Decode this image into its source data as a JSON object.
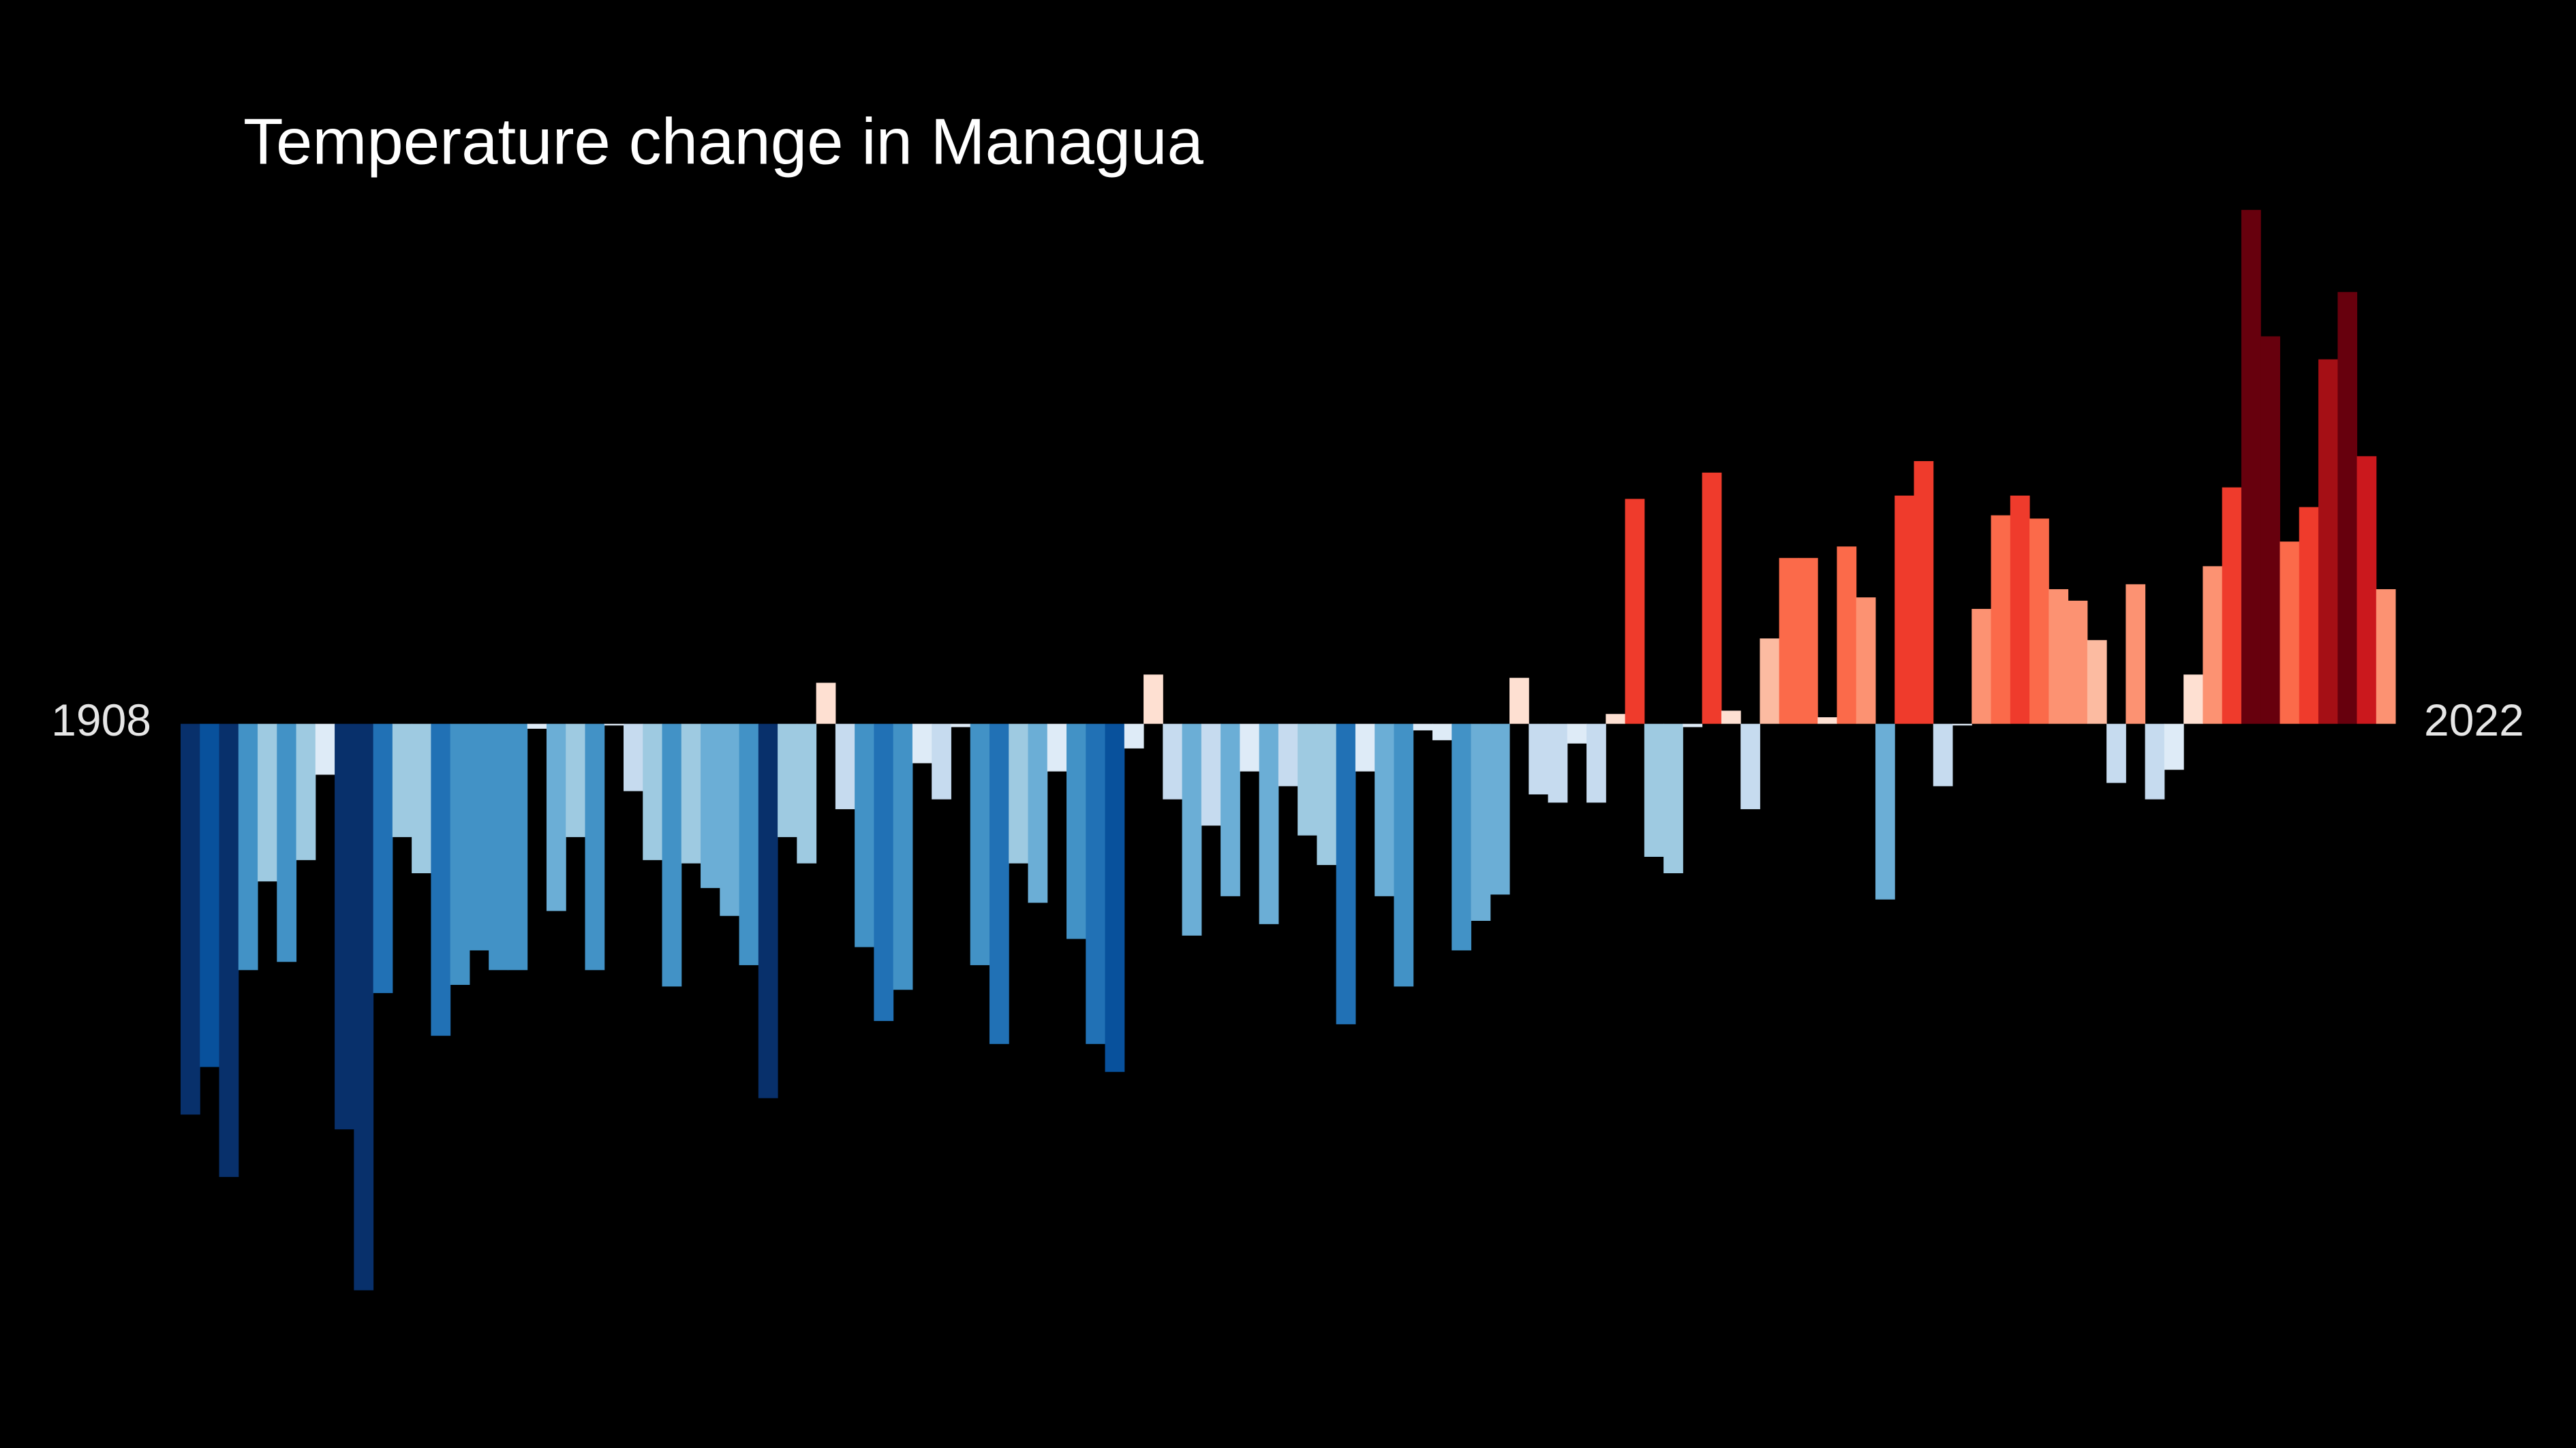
{
  "chart_data": {
    "type": "bar",
    "title": "Temperature change in Managua",
    "categories": [
      "1908",
      null,
      null,
      null,
      null,
      null,
      null,
      null,
      null,
      null,
      null,
      null,
      null,
      null,
      null,
      null,
      null,
      null,
      null,
      null,
      null,
      null,
      null,
      null,
      null,
      null,
      null,
      null,
      null,
      null,
      null,
      null,
      null,
      null,
      null,
      null,
      null,
      null,
      null,
      null,
      null,
      null,
      null,
      null,
      null,
      null,
      null,
      null,
      null,
      null,
      null,
      null,
      null,
      null,
      null,
      null,
      null,
      null,
      null,
      null,
      null,
      null,
      null,
      null,
      null,
      null,
      null,
      null,
      null,
      null,
      null,
      null,
      null,
      null,
      null,
      null,
      null,
      null,
      null,
      null,
      null,
      null,
      null,
      null,
      null,
      null,
      null,
      null,
      null,
      null,
      null,
      null,
      null,
      null,
      null,
      null,
      null,
      null,
      null,
      null,
      null,
      null,
      null,
      null,
      null,
      null,
      null,
      null,
      null,
      null,
      null,
      null,
      null,
      null,
      "2022"
    ],
    "values": [
      -2.38,
      -2.09,
      -2.76,
      -1.5,
      -0.96,
      -1.45,
      -0.83,
      -0.31,
      -2.47,
      -3.45,
      -1.64,
      -0.69,
      -0.91,
      -1.9,
      -1.59,
      -1.38,
      -1.5,
      -1.5,
      -0.03,
      -1.14,
      -0.69,
      -1.5,
      -0.01,
      -0.41,
      -0.83,
      -1.6,
      -0.85,
      -1.0,
      -1.17,
      -1.47,
      -2.28,
      -0.69,
      -0.85,
      0.25,
      -0.52,
      -1.36,
      -1.81,
      -1.62,
      -0.24,
      -0.46,
      -0.02,
      -1.47,
      -1.95,
      -0.85,
      -1.09,
      -0.29,
      -1.31,
      -1.95,
      -2.12,
      -0.15,
      0.3,
      -0.46,
      -1.29,
      -0.62,
      -1.05,
      -0.29,
      -1.22,
      -0.38,
      -0.68,
      -0.86,
      -1.83,
      -0.29,
      -1.05,
      -1.6,
      -0.04,
      -0.1,
      -1.38,
      -1.2,
      -1.04,
      0.28,
      -0.43,
      -0.48,
      -0.12,
      -0.48,
      0.06,
      1.37,
      -0.81,
      -0.91,
      -0.02,
      1.53,
      0.08,
      -0.52,
      0.52,
      1.01,
      1.01,
      0.04,
      1.08,
      0.77,
      -1.07,
      1.39,
      1.6,
      -0.38,
      -0.01,
      0.7,
      1.27,
      1.39,
      1.25,
      0.82,
      0.75,
      0.51,
      -0.36,
      0.85,
      -0.46,
      -0.28,
      0.3,
      0.96,
      1.44,
      3.13,
      2.36,
      1.11,
      1.32,
      2.22,
      2.63,
      1.63,
      0.82
    ],
    "colormap": [
      "#08306b",
      "#08519c",
      "#2171b5",
      "#4292c6",
      "#6baed6",
      "#9ecae1",
      "#c6dbef",
      "#deebf7",
      "#fee0d2",
      "#fcbba1",
      "#fc9272",
      "#fb6a4a",
      "#ef3b2c",
      "#cb181d",
      "#a50f15",
      "#67000d"
    ],
    "clim": [
      -2.6,
      2.6
    ],
    "ylim": [
      -4,
      3.5
    ]
  }
}
